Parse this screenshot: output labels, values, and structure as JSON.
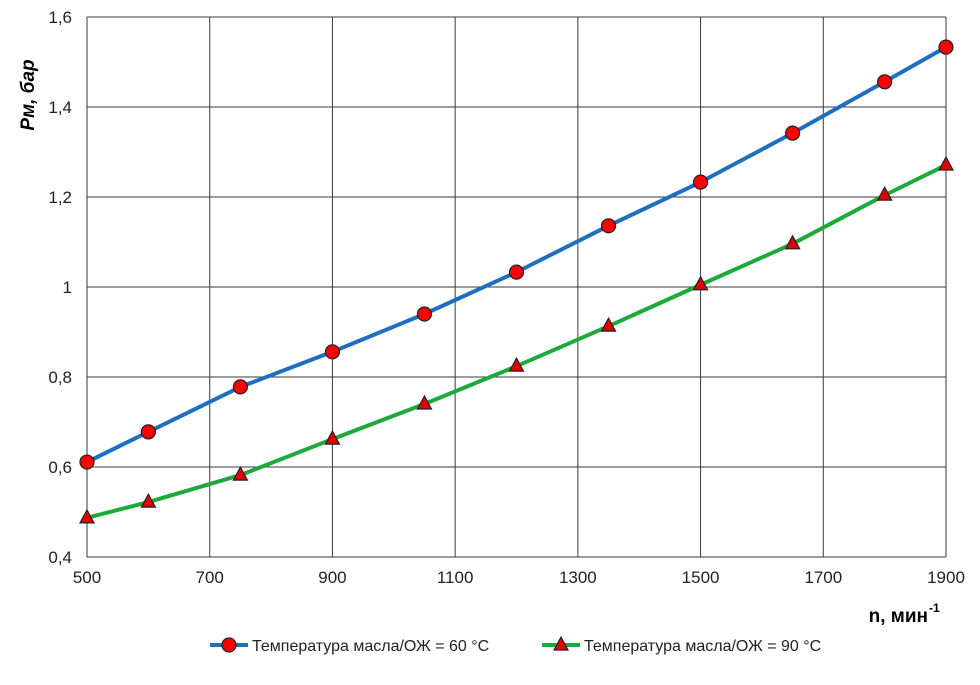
{
  "chart_data": {
    "type": "line",
    "title": "",
    "xlabel": "n, мин",
    "xlabel_sup": "-1",
    "ylabel": "Pм, бар",
    "xlim": [
      500,
      1900
    ],
    "ylim": [
      0.4,
      1.6
    ],
    "grid": true,
    "legend_position": "bottom",
    "x_ticks": [
      "500",
      "700",
      "900",
      "1100",
      "1300",
      "1500",
      "1700",
      "1900"
    ],
    "y_ticks": [
      "0,4",
      "0,6",
      "0,8",
      "1",
      "1,2",
      "1,4",
      "1,6"
    ],
    "x": [
      500,
      600,
      750,
      900,
      1050,
      1200,
      1350,
      1500,
      1650,
      1800,
      1900
    ],
    "series": [
      {
        "name": "Температура масла/ОЖ = 60 °C",
        "color": "#1F6FC0",
        "marker": "circle",
        "values": [
          0.611,
          0.678,
          0.778,
          0.856,
          0.94,
          1.033,
          1.136,
          1.233,
          1.342,
          1.456,
          1.533
        ]
      },
      {
        "name": "Температура масла/ОЖ = 90 °C",
        "color": "#1EAA3A",
        "marker": "triangle",
        "values": [
          0.487,
          0.522,
          0.582,
          0.662,
          0.74,
          0.824,
          0.913,
          1.005,
          1.096,
          1.204,
          1.271
        ]
      }
    ]
  }
}
